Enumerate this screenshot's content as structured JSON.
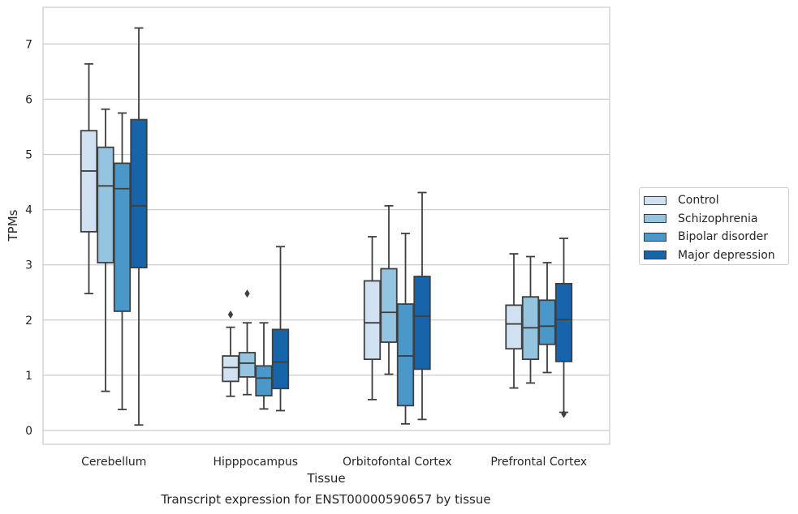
{
  "caption": "Transcript expression for ENST00000590657 by tissue",
  "chart_data": {
    "type": "box",
    "xlabel": "Tissue",
    "ylabel": "TPMs",
    "ylim": [
      -0.25,
      7.65
    ],
    "yticks": [
      0,
      1,
      2,
      3,
      4,
      5,
      6,
      7
    ],
    "grid": "horizontal",
    "legend_position": "right",
    "categories": [
      "Cerebellum",
      "Hipppocampus",
      "Orbitofontal Cortex",
      "Prefrontal Cortex"
    ],
    "series": [
      {
        "name": "Control",
        "color": "#d0e1f2",
        "boxes": [
          {
            "min": 2.48,
            "q1": 3.6,
            "median": 4.7,
            "q3": 5.43,
            "max": 6.64,
            "outliers": []
          },
          {
            "min": 0.62,
            "q1": 0.89,
            "median": 1.14,
            "q3": 1.35,
            "max": 1.87,
            "outliers": [
              2.1
            ]
          },
          {
            "min": 0.56,
            "q1": 1.29,
            "median": 1.95,
            "q3": 2.71,
            "max": 3.51,
            "outliers": []
          },
          {
            "min": 0.77,
            "q1": 1.48,
            "median": 1.93,
            "q3": 2.27,
            "max": 3.2,
            "outliers": []
          }
        ]
      },
      {
        "name": "Schizophrenia",
        "color": "#94c4df",
        "boxes": [
          {
            "min": 0.71,
            "q1": 3.04,
            "median": 4.43,
            "q3": 5.13,
            "max": 5.82,
            "outliers": []
          },
          {
            "min": 0.65,
            "q1": 0.97,
            "median": 1.22,
            "q3": 1.41,
            "max": 1.95,
            "outliers": [
              2.48
            ]
          },
          {
            "min": 1.02,
            "q1": 1.6,
            "median": 2.14,
            "q3": 2.93,
            "max": 4.07,
            "outliers": []
          },
          {
            "min": 0.86,
            "q1": 1.29,
            "median": 1.86,
            "q3": 2.42,
            "max": 3.15,
            "outliers": []
          }
        ]
      },
      {
        "name": "Bipolar disorder",
        "color": "#4a98c9",
        "boxes": [
          {
            "min": 0.38,
            "q1": 2.16,
            "median": 4.38,
            "q3": 4.84,
            "max": 5.75,
            "outliers": []
          },
          {
            "min": 0.39,
            "q1": 0.63,
            "median": 0.95,
            "q3": 1.17,
            "max": 1.95,
            "outliers": []
          },
          {
            "min": 0.12,
            "q1": 0.45,
            "median": 1.35,
            "q3": 2.29,
            "max": 3.57,
            "outliers": []
          },
          {
            "min": 1.05,
            "q1": 1.56,
            "median": 1.89,
            "q3": 2.36,
            "max": 3.04,
            "outliers": []
          }
        ]
      },
      {
        "name": "Major depression",
        "color": "#1764ab",
        "boxes": [
          {
            "min": 0.1,
            "q1": 2.95,
            "median": 4.07,
            "q3": 5.63,
            "max": 7.29,
            "outliers": []
          },
          {
            "min": 0.36,
            "q1": 0.76,
            "median": 1.24,
            "q3": 1.83,
            "max": 3.33,
            "outliers": []
          },
          {
            "min": 0.2,
            "q1": 1.11,
            "median": 2.07,
            "q3": 2.79,
            "max": 4.31,
            "outliers": []
          },
          {
            "min": 0.33,
            "q1": 1.25,
            "median": 2.01,
            "q3": 2.66,
            "max": 3.48,
            "outliers": [
              0.3
            ]
          }
        ]
      }
    ]
  }
}
